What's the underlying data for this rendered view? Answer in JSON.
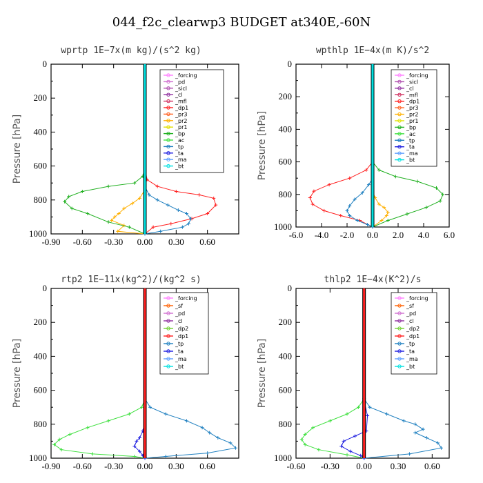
{
  "figure": {
    "title": "044_f2c_clearwp3  BUDGET at340E,-60N"
  },
  "chart_data": [
    {
      "type": "line",
      "title": "wprtp   1E−7x(m kg)/(s^2 kg)",
      "ylabel": "Pressure [hPa]",
      "xlabel": "",
      "xlim": [
        -0.9,
        0.9
      ],
      "ylim": [
        1000,
        0
      ],
      "xticks": [
        -0.9,
        -0.6,
        -0.3,
        0.0,
        0.3,
        0.6
      ],
      "xtick_labels": [
        "-0.90",
        "-0.60",
        "-0.30",
        "0.00",
        "0.30",
        "0.60"
      ],
      "yticks": [
        0,
        200,
        400,
        600,
        800,
        1000
      ],
      "legend": [
        "_forcing",
        "_pd",
        "_sicl",
        "_cl",
        "_mfl",
        "_dp1",
        "_pr3",
        "_pr2",
        "_pr1",
        "_bp",
        "_ac",
        "_tp",
        "_ta",
        "_ma",
        "_bt"
      ],
      "legend_placement": "upper-right",
      "series": [
        {
          "name": "_dp1",
          "color": "#ff2020",
          "x": [
            0,
            0.02,
            0.12,
            0.3,
            0.52,
            0.66,
            0.68,
            0.6,
            0.45,
            0.25,
            0.08,
            0.0
          ],
          "y": [
            600,
            680,
            720,
            750,
            770,
            790,
            830,
            880,
            910,
            940,
            960,
            1000
          ]
        },
        {
          "name": "_pr2",
          "color": "#ffb000",
          "x": [
            0,
            -0.05,
            -0.12,
            -0.2,
            -0.25,
            -0.29,
            -0.32,
            -0.2,
            -0.26,
            -0.0
          ],
          "y": [
            740,
            790,
            820,
            850,
            880,
            900,
            920,
            950,
            985,
            1000
          ]
        },
        {
          "name": "_bp",
          "color": "#20b020",
          "x": [
            0,
            -0.02,
            -0.1,
            -0.35,
            -0.6,
            -0.73,
            -0.77,
            -0.7,
            -0.55,
            -0.35,
            -0.15,
            0.0
          ],
          "y": [
            600,
            660,
            700,
            720,
            750,
            780,
            810,
            850,
            880,
            930,
            960,
            1000
          ]
        },
        {
          "name": "_tp",
          "color": "#2080c0",
          "x": [
            0,
            0.04,
            0.12,
            0.22,
            0.32,
            0.4,
            0.44,
            0.42,
            0.36,
            0.15,
            0.0
          ],
          "y": [
            720,
            770,
            800,
            830,
            860,
            880,
            910,
            940,
            960,
            985,
            1000
          ]
        },
        {
          "name": "_bt",
          "color": "#00e0e0",
          "x": [
            0,
            0,
            0,
            0,
            0,
            0
          ],
          "y": [
            0,
            200,
            400,
            600,
            800,
            1000
          ]
        }
      ]
    },
    {
      "type": "line",
      "title": "wpthlp   1E−4x(m K)/s^2",
      "ylabel": "Pressure [hPa]",
      "xlabel": "",
      "xlim": [
        -6.0,
        6.0
      ],
      "ylim": [
        1000,
        0
      ],
      "xticks": [
        -6.0,
        -4.0,
        -2.0,
        0.0,
        2.0,
        4.0,
        6.0
      ],
      "xtick_labels": [
        "-6.0",
        "-4.0",
        "-2.0",
        "0.0",
        "2.0",
        "4.0",
        "6.0"
      ],
      "yticks": [
        0,
        200,
        400,
        600,
        800,
        1000
      ],
      "legend": [
        "_forcing",
        "_sicl",
        "_cl",
        "_mfl",
        "_dp1",
        "_pr3",
        "_pr2",
        "_pr1",
        "_bp",
        "_ac",
        "_tp",
        "_ta",
        "_ma",
        "_bt"
      ],
      "legend_placement": "upper-right",
      "series": [
        {
          "name": "_dp1",
          "color": "#ff2020",
          "x": [
            0,
            -0.5,
            -1.8,
            -3.4,
            -4.6,
            -4.9,
            -4.7,
            -3.8,
            -2.5,
            -1.0,
            0.0
          ],
          "y": [
            600,
            650,
            700,
            740,
            780,
            820,
            860,
            900,
            930,
            960,
            1000
          ]
        },
        {
          "name": "_pr2",
          "color": "#ffb000",
          "x": [
            0,
            0.2,
            0.5,
            0.9,
            1.2,
            1.1,
            0.7,
            0.0
          ],
          "y": [
            780,
            820,
            860,
            880,
            910,
            930,
            960,
            1000
          ]
        },
        {
          "name": "_bp",
          "color": "#20b020",
          "x": [
            0,
            0.5,
            1.8,
            3.5,
            5.0,
            5.5,
            5.3,
            4.2,
            2.7,
            1.2,
            0.0
          ],
          "y": [
            600,
            650,
            690,
            720,
            760,
            800,
            840,
            880,
            920,
            960,
            1000
          ]
        },
        {
          "name": "_tp",
          "color": "#2080c0",
          "x": [
            0,
            -0.3,
            -0.8,
            -1.4,
            -1.8,
            -2.0,
            -1.8,
            -1.2,
            -0.4,
            0.0
          ],
          "y": [
            700,
            740,
            790,
            830,
            870,
            900,
            930,
            960,
            985,
            1000
          ]
        },
        {
          "name": "_bt",
          "color": "#00e0e0",
          "x": [
            0,
            0,
            0,
            0,
            0,
            0
          ],
          "y": [
            0,
            200,
            400,
            600,
            800,
            1000
          ]
        }
      ]
    },
    {
      "type": "line",
      "title": "rtp2   1E−11x(kg^2)/(kg^2 s)",
      "ylabel": "Pressure [hPa]",
      "xlabel": "",
      "xlim": [
        -0.9,
        0.9
      ],
      "ylim": [
        1000,
        0
      ],
      "xticks": [
        -0.9,
        -0.6,
        -0.3,
        0.0,
        0.3,
        0.6
      ],
      "xtick_labels": [
        "-0.90",
        "-0.60",
        "-0.30",
        "0.00",
        "0.30",
        "0.60"
      ],
      "yticks": [
        0,
        200,
        400,
        600,
        800,
        1000
      ],
      "legend": [
        "_forcing",
        "_sf",
        "_pd",
        "_cl",
        "_dp2",
        "_dp1",
        "_tp",
        "_ta",
        "_ma",
        "_bt"
      ],
      "legend_placement": "upper-right",
      "series": [
        {
          "name": "_dp1",
          "color": "#40e040",
          "x": [
            0,
            -0.03,
            -0.15,
            -0.35,
            -0.55,
            -0.72,
            -0.82,
            -0.87,
            -0.8,
            -0.5,
            -0.1,
            0.0
          ],
          "y": [
            650,
            700,
            740,
            780,
            820,
            860,
            890,
            920,
            950,
            975,
            990,
            1000
          ]
        },
        {
          "name": "_tp",
          "color": "#2080c0",
          "x": [
            0,
            0.05,
            0.2,
            0.4,
            0.55,
            0.62,
            0.7,
            0.82,
            0.87,
            0.6,
            0.2,
            0.0
          ],
          "y": [
            650,
            700,
            740,
            780,
            820,
            850,
            880,
            910,
            940,
            970,
            990,
            1000
          ]
        },
        {
          "name": "_ta",
          "color": "#2020e0",
          "x": [
            0,
            -0.02,
            -0.05,
            -0.08,
            -0.1,
            -0.05,
            -0.02,
            0.0
          ],
          "y": [
            780,
            840,
            880,
            900,
            930,
            960,
            985,
            1000
          ]
        },
        {
          "name": "_forcing",
          "color": "#ff2020",
          "x": [
            0,
            0,
            0,
            0,
            0,
            0
          ],
          "y": [
            0,
            200,
            400,
            600,
            800,
            1000
          ]
        }
      ]
    },
    {
      "type": "line",
      "title": "thlp2   1E−4x(K^2)/s",
      "ylabel": "Pressure [hPa]",
      "xlabel": "",
      "xlim": [
        -0.6,
        0.75
      ],
      "ylim": [
        1000,
        0
      ],
      "xticks": [
        -0.6,
        -0.3,
        0.0,
        0.3,
        0.6
      ],
      "xtick_labels": [
        "-0.60",
        "-0.30",
        "0.00",
        "0.30",
        "0.60"
      ],
      "yticks": [
        0,
        200,
        400,
        600,
        800,
        1000
      ],
      "legend": [
        "_forcing",
        "_sf",
        "_pd",
        "_cl",
        "_dp2",
        "_dp1",
        "_tp",
        "_ta",
        "_ma",
        "_bt"
      ],
      "legend_placement": "upper-right",
      "series": [
        {
          "name": "_dp1",
          "color": "#40e040",
          "x": [
            0,
            -0.05,
            -0.15,
            -0.3,
            -0.45,
            -0.52,
            -0.55,
            -0.52,
            -0.4,
            -0.15,
            0.0
          ],
          "y": [
            650,
            700,
            740,
            780,
            820,
            860,
            890,
            920,
            950,
            980,
            1000
          ]
        },
        {
          "name": "_tp",
          "color": "#2080c0",
          "x": [
            0,
            0.05,
            0.2,
            0.35,
            0.45,
            0.52,
            0.45,
            0.55,
            0.65,
            0.68,
            0.4,
            0.0
          ],
          "y": [
            650,
            700,
            740,
            780,
            800,
            830,
            850,
            880,
            910,
            940,
            975,
            1000
          ]
        },
        {
          "name": "_ta",
          "color": "#2020e0",
          "x": [
            0,
            0.03,
            0.02,
            -0.08,
            -0.18,
            -0.2,
            -0.12,
            -0.03,
            0.0
          ],
          "y": [
            660,
            750,
            840,
            870,
            900,
            930,
            960,
            985,
            1000
          ]
        },
        {
          "name": "_forcing",
          "color": "#ff2020",
          "x": [
            0,
            0,
            0,
            0,
            0,
            0
          ],
          "y": [
            0,
            200,
            400,
            600,
            800,
            1000
          ]
        }
      ]
    }
  ]
}
